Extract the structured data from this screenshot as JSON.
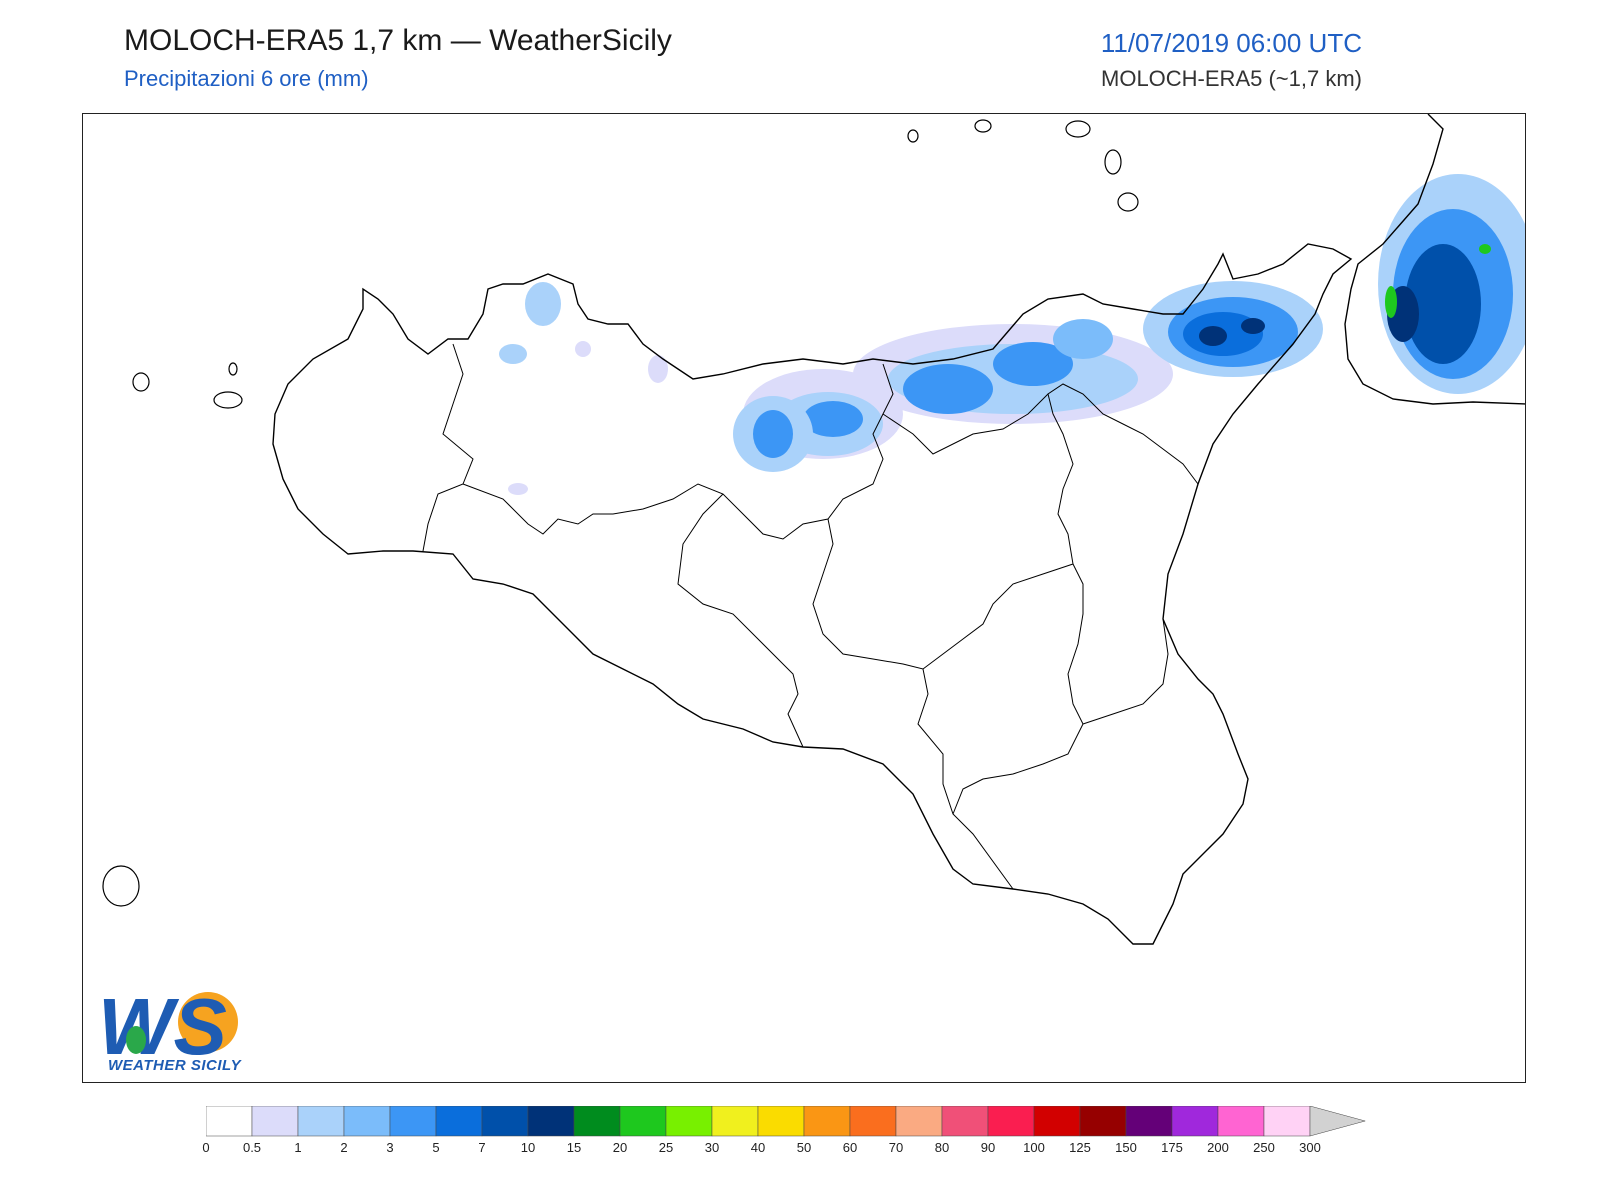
{
  "header": {
    "title": "MOLOCH-ERA5 1,7 km — WeatherSicily",
    "subtitle": "Precipitazioni 6 ore (mm)",
    "datetime": "11/07/2019 06:00 UTC",
    "model": "MOLOCH-ERA5 (~1,7 km)"
  },
  "logo": {
    "text": "WEATHER SICILY",
    "monogram": "WS"
  },
  "legend": {
    "thresholds": [
      "0",
      "0.5",
      "1",
      "2",
      "3",
      "5",
      "7",
      "10",
      "15",
      "20",
      "25",
      "30",
      "40",
      "50",
      "60",
      "70",
      "80",
      "90",
      "100",
      "125",
      "150",
      "175",
      "200",
      "250",
      "300"
    ],
    "colors": [
      "#ffffff",
      "#dcdcfa",
      "#aad2fa",
      "#7bbcfa",
      "#3c96f5",
      "#0a6edc",
      "#0050aa",
      "#003278",
      "#008c1e",
      "#1ec81e",
      "#78f000",
      "#f0f01e",
      "#fadc00",
      "#fa9614",
      "#fa6e1e",
      "#faaa82",
      "#f05078",
      "#fa1e50",
      "#d20000",
      "#960000",
      "#640078",
      "#a028dc",
      "#ff64d2",
      "#ffd2f5",
      "#d2d2d2"
    ]
  }
}
